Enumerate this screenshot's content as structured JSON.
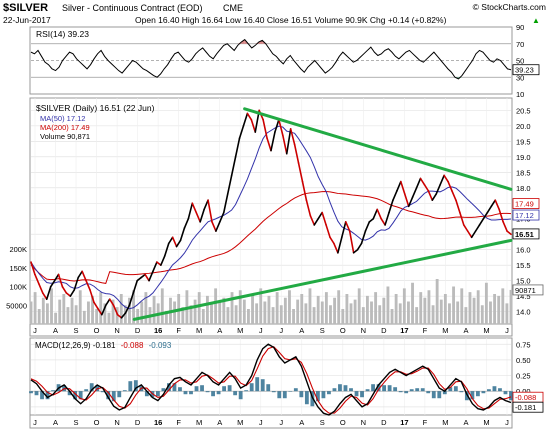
{
  "header": {
    "symbol": "$SILVER",
    "name": "Silver - Continuous Contract (EOD)",
    "exchange": "CME",
    "credit": "© StockCharts.com",
    "date": "22-Jun-2017",
    "quote_text": "Open 16.40 High 16.64 Low 16.40 Close 16.51 Volume 90.9K Chg +0.14 (+0.82%)",
    "quote_arrow": "▲"
  },
  "chart_data": [
    {
      "type": "line",
      "panel": "rsi",
      "label": "RSI(14) 39.23",
      "ylim": [
        10,
        90
      ],
      "y_ticks": [
        10,
        30,
        50,
        70,
        90
      ],
      "reference_lines": [
        30,
        50,
        70
      ],
      "last_value_label": "39.23",
      "values": [
        60,
        58,
        62,
        55,
        48,
        45,
        40,
        38,
        42,
        50,
        55,
        60,
        58,
        52,
        48,
        44,
        40,
        45,
        52,
        58,
        62,
        55,
        50,
        46,
        42,
        38,
        35,
        40,
        45,
        50,
        48,
        44,
        40,
        38,
        35,
        32,
        30,
        34,
        40,
        45,
        52,
        58,
        60,
        55,
        50,
        48,
        52,
        58,
        62,
        65,
        60,
        55,
        52,
        58,
        63,
        68,
        70,
        66,
        62,
        68,
        72,
        75,
        70,
        65,
        68,
        72,
        74,
        70,
        64,
        58,
        55,
        50,
        46,
        52,
        56,
        50,
        45,
        40,
        36,
        42,
        46,
        50,
        45,
        40,
        35,
        38,
        42,
        48,
        55,
        60,
        56,
        52,
        48,
        50,
        54,
        58,
        62,
        66,
        60,
        56,
        58,
        62,
        64,
        60,
        55,
        52,
        56,
        60,
        62,
        58,
        54,
        50,
        48,
        52,
        56,
        60,
        55,
        50,
        45,
        40,
        36,
        30,
        28,
        32,
        38,
        44,
        50,
        58,
        62,
        60,
        55,
        50,
        48,
        52,
        50,
        45,
        40,
        39
      ]
    },
    {
      "type": "line",
      "panel": "price",
      "title": "$SILVER (Daily) 16.51 (22 Jun)",
      "ylim": [
        13.6,
        20.9
      ],
      "y_ticks": [
        14.0,
        14.5,
        15.0,
        15.5,
        16.0,
        16.5,
        17.0,
        17.5,
        18.0,
        18.5,
        19.0,
        19.5,
        20.0,
        20.5
      ],
      "x_tick_labels": [
        "J",
        "A",
        "S",
        "O",
        "N",
        "D",
        "16",
        "F",
        "M",
        "A",
        "M",
        "J",
        "J",
        "A",
        "S",
        "O",
        "N",
        "D",
        "17",
        "F",
        "M",
        "A",
        "M",
        "J"
      ],
      "series": [
        {
          "name": "$SILVER (Daily) 16.51 (22 Jun)",
          "color": "#000000",
          "alt_color": "#cc0000",
          "values": [
            15.6,
            15.2,
            14.9,
            14.6,
            14.4,
            14.8,
            15.0,
            15.2,
            14.8,
            14.6,
            14.5,
            14.7,
            15.1,
            15.3,
            15.0,
            14.7,
            14.3,
            14.1,
            13.9,
            14.2,
            14.4,
            14.2,
            13.9,
            13.8,
            13.95,
            14.2,
            14.6,
            15.0,
            15.1,
            15.2,
            15.0,
            15.3,
            15.6,
            15.5,
            15.8,
            16.2,
            16.4,
            16.1,
            16.3,
            16.7,
            17.0,
            17.5,
            17.2,
            16.9,
            17.3,
            17.6,
            16.9,
            16.6,
            16.9,
            17.2,
            17.8,
            18.4,
            19.0,
            19.6,
            20.0,
            20.4,
            20.2,
            19.8,
            20.5,
            20.2,
            19.6,
            19.2,
            19.8,
            20.2,
            19.7,
            19.1,
            19.9,
            19.4,
            18.8,
            18.2,
            17.6,
            17.1,
            16.8,
            17.0,
            17.2,
            16.8,
            16.4,
            16.2,
            15.9,
            16.4,
            16.9,
            16.6,
            15.9,
            16.0,
            16.2,
            16.6,
            16.9,
            17.0,
            17.3,
            17.0,
            16.8,
            17.2,
            17.6,
            17.9,
            18.2,
            17.8,
            17.4,
            17.7,
            18.0,
            18.3,
            18.1,
            17.9,
            17.6,
            17.8,
            18.1,
            18.4,
            18.2,
            17.9,
            17.6,
            17.2,
            16.8,
            16.6,
            16.4,
            16.6,
            16.8,
            17.0,
            17.2,
            17.4,
            17.6,
            17.3,
            16.9,
            16.6,
            16.5
          ]
        },
        {
          "name": "MA(50) 17.12",
          "color": "#3333aa"
        },
        {
          "name": "MA(200) 17.49",
          "color": "#cc0000"
        }
      ],
      "trendlines": [
        {
          "name": "upper resistance",
          "color": "#22aa44",
          "from": [
            0.445,
            20.55
          ],
          "to": [
            1.0,
            17.95
          ]
        },
        {
          "name": "lower support",
          "color": "#22aa44",
          "from": [
            0.215,
            13.75
          ],
          "to": [
            1.0,
            16.3
          ]
        }
      ],
      "last_value_labels": [
        {
          "text": "17.49",
          "series": "MA(200) 17.49",
          "y": 17.49
        },
        {
          "text": "17.12",
          "series": "MA(50) 17.12",
          "y": 17.12
        },
        {
          "text": "16.51",
          "series": "$SILVER (Daily) 16.51 (22 Jun)",
          "y": 16.51
        }
      ]
    },
    {
      "type": "bar",
      "panel": "volume",
      "label": "Volume 90,871",
      "y_tick_labels": [
        "200K",
        "150K",
        "100K",
        "50000"
      ],
      "y_tick_values": [
        200000,
        150000,
        100000,
        50000
      ],
      "last_value_label": "90871",
      "values": [
        60000,
        85000,
        40000,
        70000,
        55000,
        95000,
        30000,
        65000,
        80000,
        45000,
        70000,
        50000,
        90000,
        35000,
        60000,
        75000,
        40000,
        85000,
        55000,
        30000,
        65000,
        45000,
        80000,
        50000,
        70000,
        90000,
        40000,
        60000,
        85000,
        45000,
        75000,
        55000,
        95000,
        35000,
        70000,
        60000,
        80000,
        45000,
        90000,
        50000,
        65000,
        85000,
        40000,
        75000,
        55000,
        95000,
        60000,
        70000,
        45000,
        85000,
        50000,
        90000,
        65000,
        40000,
        80000,
        55000,
        95000,
        60000,
        75000,
        45000,
        85000,
        50000,
        70000,
        90000,
        40000,
        65000,
        80000,
        55000,
        95000,
        45000,
        75000,
        60000,
        85000,
        50000,
        70000,
        90000,
        40000,
        80000,
        55000,
        65000,
        95000,
        45000,
        75000,
        60000,
        85000,
        50000,
        70000,
        100000,
        40000,
        80000,
        55000,
        95000,
        60000,
        110000,
        45000,
        85000,
        70000,
        90000,
        50000,
        120000,
        65000,
        80000,
        55000,
        100000,
        60000,
        95000,
        45000,
        85000,
        70000,
        90000,
        50000,
        110000,
        60000,
        80000,
        75000,
        95000,
        55000,
        90871
      ]
    },
    {
      "type": "line",
      "panel": "macd",
      "label": "MACD(12,26,9) -0.181, -0.088, -0.093",
      "ylim": [
        -0.38,
        0.85
      ],
      "y_ticks": [
        0.75,
        0.5,
        0.25,
        0.0,
        -0.25
      ],
      "last_value_labels": [
        "-0.088",
        "-0.181"
      ],
      "series": [
        {
          "name": "MACD(12,26,9) -0.181",
          "color": "#000000",
          "values": [
            0.18,
            0.12,
            0.0,
            -0.1,
            -0.05,
            0.05,
            0.1,
            0.0,
            -0.12,
            -0.2,
            -0.12,
            0.02,
            0.1,
            0.05,
            -0.1,
            -0.24,
            -0.3,
            -0.26,
            -0.1,
            0.05,
            0.1,
            0.0,
            -0.1,
            -0.15,
            -0.05,
            0.1,
            0.2,
            0.22,
            0.15,
            0.1,
            0.2,
            0.3,
            0.25,
            0.15,
            0.1,
            0.2,
            0.3,
            0.2,
            0.05,
            0.1,
            0.25,
            0.5,
            0.68,
            0.75,
            0.7,
            0.55,
            0.45,
            0.5,
            0.55,
            0.4,
            0.15,
            -0.1,
            -0.25,
            -0.35,
            -0.38,
            -0.32,
            -0.2,
            -0.1,
            -0.05,
            -0.15,
            -0.25,
            -0.2,
            -0.05,
            0.1,
            0.2,
            0.3,
            0.35,
            0.3,
            0.25,
            0.3,
            0.35,
            0.4,
            0.35,
            0.2,
            0.05,
            0.0,
            0.1,
            0.2,
            0.15,
            -0.05,
            -0.2,
            -0.28,
            -0.3,
            -0.25,
            -0.15,
            -0.1,
            -0.15,
            -0.18
          ]
        },
        {
          "name": "-0.088",
          "color": "#cc0000",
          "values": [
            0.2,
            0.16,
            0.08,
            -0.02,
            -0.06,
            -0.02,
            0.04,
            0.04,
            -0.04,
            -0.12,
            -0.14,
            -0.06,
            0.04,
            0.06,
            -0.02,
            -0.14,
            -0.24,
            -0.27,
            -0.2,
            -0.06,
            0.05,
            0.05,
            -0.04,
            -0.1,
            -0.08,
            0.02,
            0.12,
            0.18,
            0.18,
            0.13,
            0.15,
            0.24,
            0.26,
            0.2,
            0.13,
            0.15,
            0.24,
            0.24,
            0.13,
            0.09,
            0.17,
            0.36,
            0.56,
            0.68,
            0.71,
            0.62,
            0.52,
            0.5,
            0.52,
            0.46,
            0.28,
            0.05,
            -0.15,
            -0.28,
            -0.35,
            -0.35,
            -0.27,
            -0.16,
            -0.08,
            -0.1,
            -0.19,
            -0.22,
            -0.12,
            0.03,
            0.14,
            0.24,
            0.31,
            0.31,
            0.27,
            0.28,
            0.32,
            0.37,
            0.37,
            0.27,
            0.12,
            0.03,
            0.06,
            0.15,
            0.16,
            0.04,
            -0.12,
            -0.23,
            -0.28,
            -0.27,
            -0.2,
            -0.13,
            -0.12,
            -0.09
          ]
        },
        {
          "name": "-0.093",
          "color": "#2f6f8f"
        }
      ]
    }
  ]
}
